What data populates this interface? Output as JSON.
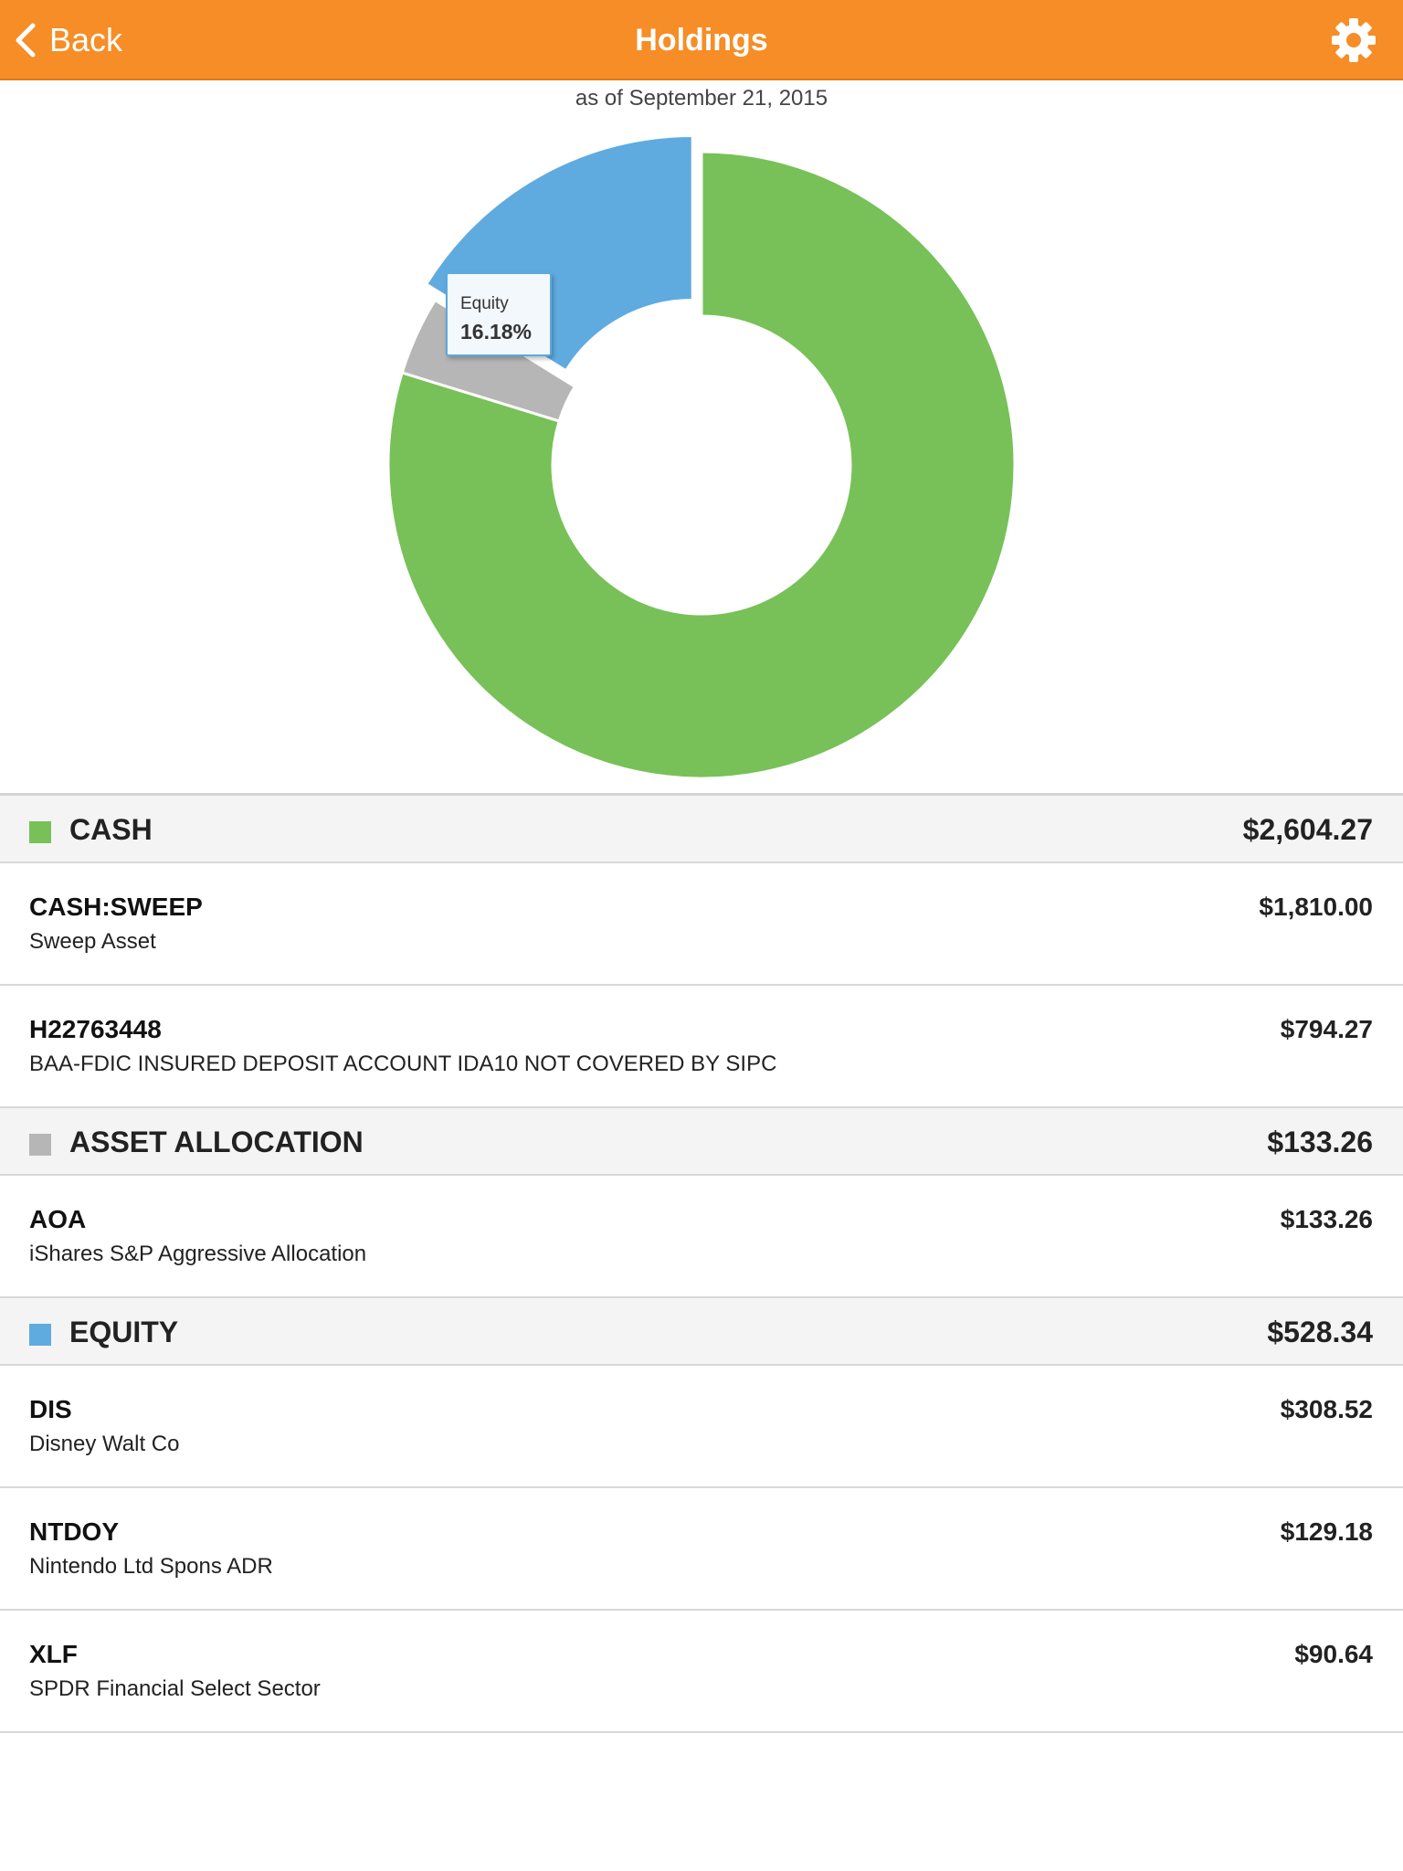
{
  "header": {
    "back_label": "Back",
    "title": "Holdings",
    "accent_color": "#f68d26"
  },
  "as_of": "as of September 21, 2015",
  "chart_data": {
    "type": "pie",
    "style": "donut",
    "slices": [
      {
        "name": "Cash",
        "percent": 79.76,
        "color": "#77c158"
      },
      {
        "name": "Asset Allocation",
        "percent": 4.06,
        "color": "#b5b6b5"
      },
      {
        "name": "Equity",
        "percent": 16.18,
        "color": "#5fabe0",
        "exploded": true
      }
    ],
    "tooltip": {
      "label": "Equity",
      "value": "16.18%"
    }
  },
  "categories": [
    {
      "name": "CASH",
      "total": "$2,604.27",
      "color": "#77c158",
      "holdings": [
        {
          "symbol": "CASH:SWEEP",
          "description": "Sweep Asset",
          "value": "$1,810.00"
        },
        {
          "symbol": "H22763448",
          "description": "BAA-FDIC INSURED DEPOSIT ACCOUNT IDA10 NOT COVERED BY SIPC",
          "value": "$794.27"
        }
      ]
    },
    {
      "name": "ASSET ALLOCATION",
      "total": "$133.26",
      "color": "#b5b6b5",
      "holdings": [
        {
          "symbol": "AOA",
          "description": "iShares S&P Aggressive Allocation",
          "value": "$133.26"
        }
      ]
    },
    {
      "name": "EQUITY",
      "total": "$528.34",
      "color": "#5fabe0",
      "holdings": [
        {
          "symbol": "DIS",
          "description": "Disney Walt Co",
          "value": "$308.52"
        },
        {
          "symbol": "NTDOY",
          "description": "Nintendo Ltd Spons ADR",
          "value": "$129.18"
        },
        {
          "symbol": "XLF",
          "description": "SPDR Financial Select Sector",
          "value": "$90.64"
        }
      ]
    }
  ]
}
